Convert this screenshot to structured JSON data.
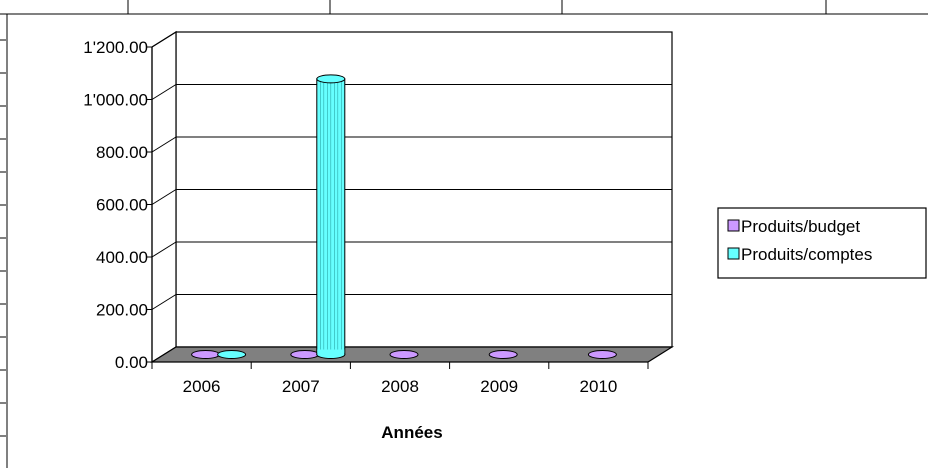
{
  "chart_data": {
    "type": "bar",
    "style": "3d-cylinder",
    "title": "",
    "xlabel": "Années",
    "ylabel": "",
    "ylim": [
      0,
      1200
    ],
    "yticks": [
      "0.00",
      "200.00",
      "400.00",
      "600.00",
      "800.00",
      "1'000.00",
      "1'200.00"
    ],
    "categories": [
      "2006",
      "2007",
      "2008",
      "2009",
      "2010"
    ],
    "series": [
      {
        "name": "Produits/budget",
        "color": "#CC99FF",
        "values": [
          0,
          0,
          0,
          0,
          0
        ]
      },
      {
        "name": "Produits/comptes",
        "color": "#66FFFF",
        "values": [
          0,
          1050,
          null,
          null,
          null
        ]
      }
    ],
    "grid": true,
    "legend_position": "right"
  }
}
